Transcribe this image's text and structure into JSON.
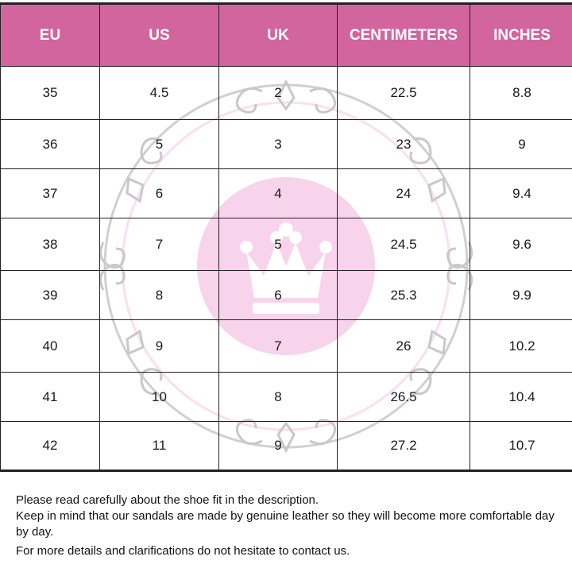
{
  "table": {
    "headers": [
      "EU",
      "US",
      "UK",
      "CENTIMETERS",
      "INCHES"
    ],
    "rows": [
      [
        "35",
        "4.5",
        "2",
        "22.5",
        "8.8"
      ],
      [
        "36",
        "5",
        "3",
        "23",
        "9"
      ],
      [
        "37",
        "6",
        "4",
        "24",
        "9.4"
      ],
      [
        "38",
        "7",
        "5",
        "24.5",
        "9.6"
      ],
      [
        "39",
        "8",
        "6",
        "25.3",
        "9.9"
      ],
      [
        "40",
        "9",
        "7",
        "26",
        "10.2"
      ],
      [
        "41",
        "10",
        "8",
        "26.5",
        "10.4"
      ],
      [
        "42",
        "11",
        "9",
        "27.2",
        "10.7"
      ]
    ]
  },
  "notes": {
    "line1": "Please read carefully about the shoe fit in the description.",
    "line2a": "Keep in mind that our sandals are made by genuine leather so they will become more comfortable day",
    "line2b": "by day.",
    "line3": "For more details and clarifications do not hesitate to contact us."
  },
  "colors": {
    "header_bg": "#d2659e",
    "header_text": "#ffffff",
    "watermark_pink": "#f8d3ec",
    "watermark_gray": "#c8c8c8"
  },
  "icons": {
    "watermark": "crown-emblem-icon"
  }
}
